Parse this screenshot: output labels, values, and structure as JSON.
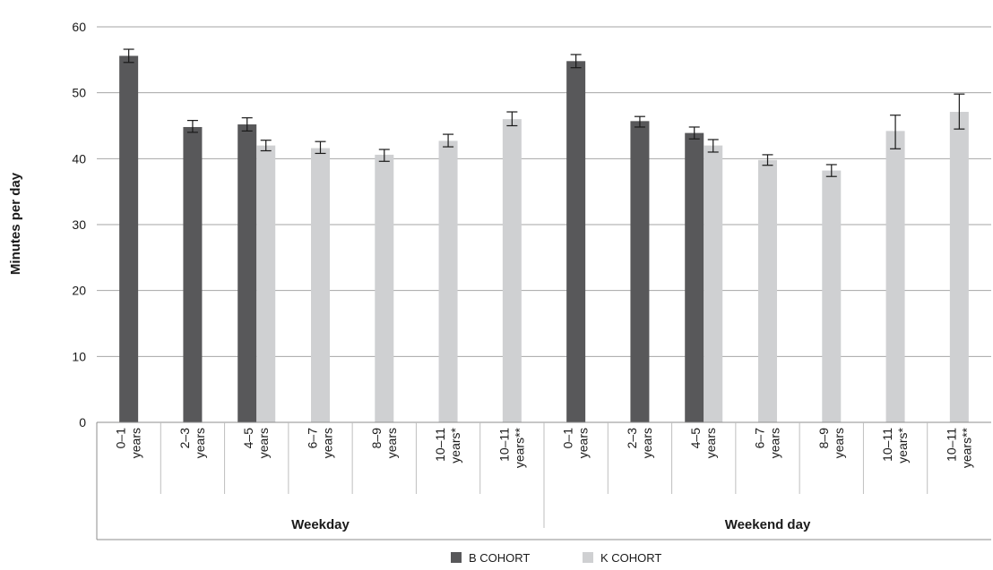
{
  "chart_data": {
    "type": "bar",
    "ylabel": "Minutes per day",
    "ylim": [
      0,
      60
    ],
    "yticks": [
      0,
      10,
      20,
      30,
      40,
      50,
      60
    ],
    "grid": true,
    "legend_position": "bottom-center",
    "colors": {
      "B COHORT": "#58585a",
      "K COHORT": "#cfd0d2"
    },
    "groups": [
      {
        "label": "Weekday",
        "categories": [
          {
            "line1": "0–1",
            "line2": "years",
            "B": {
              "value": 55.6,
              "err": [
                54.6,
                56.6
              ]
            },
            "K": null
          },
          {
            "line1": "2–3",
            "line2": "years",
            "B": {
              "value": 44.8,
              "err": [
                44.0,
                45.8
              ]
            },
            "K": null
          },
          {
            "line1": "4–5",
            "line2": "years",
            "B": {
              "value": 45.2,
              "err": [
                44.2,
                46.2
              ]
            },
            "K": {
              "value": 42.0,
              "err": [
                41.2,
                42.8
              ]
            }
          },
          {
            "line1": "6–7",
            "line2": "years",
            "B": null,
            "K": {
              "value": 41.6,
              "err": [
                40.8,
                42.6
              ]
            }
          },
          {
            "line1": "8–9",
            "line2": "years",
            "B": null,
            "K": {
              "value": 40.6,
              "err": [
                39.6,
                41.4
              ]
            }
          },
          {
            "line1": "10–11",
            "line2": "years*",
            "B": null,
            "K": {
              "value": 42.7,
              "err": [
                41.8,
                43.7
              ]
            }
          },
          {
            "line1": "10–11",
            "line2": "years**",
            "B": null,
            "K": {
              "value": 46.0,
              "err": [
                45.0,
                47.1
              ]
            }
          }
        ]
      },
      {
        "label": "Weekend day",
        "categories": [
          {
            "line1": "0–1",
            "line2": "years",
            "B": {
              "value": 54.8,
              "err": [
                53.8,
                55.8
              ]
            },
            "K": null
          },
          {
            "line1": "2–3",
            "line2": "years",
            "B": {
              "value": 45.7,
              "err": [
                44.8,
                46.4
              ]
            },
            "K": null
          },
          {
            "line1": "4–5",
            "line2": "years",
            "B": {
              "value": 43.9,
              "err": [
                43.0,
                44.8
              ]
            },
            "K": {
              "value": 42.0,
              "err": [
                41.0,
                42.9
              ]
            }
          },
          {
            "line1": "6–7",
            "line2": "years",
            "B": null,
            "K": {
              "value": 39.8,
              "err": [
                39.0,
                40.6
              ]
            }
          },
          {
            "line1": "8–9",
            "line2": "years",
            "B": null,
            "K": {
              "value": 38.2,
              "err": [
                37.3,
                39.1
              ]
            }
          },
          {
            "line1": "10–11",
            "line2": "years*",
            "B": null,
            "K": {
              "value": 44.2,
              "err": [
                41.5,
                46.6
              ]
            }
          },
          {
            "line1": "10–11",
            "line2": "years**",
            "B": null,
            "K": {
              "value": 47.1,
              "err": [
                44.5,
                49.8
              ]
            }
          }
        ]
      }
    ],
    "series": [
      {
        "name": "B COHORT",
        "key": "B"
      },
      {
        "name": "K COHORT",
        "key": "K"
      }
    ]
  }
}
